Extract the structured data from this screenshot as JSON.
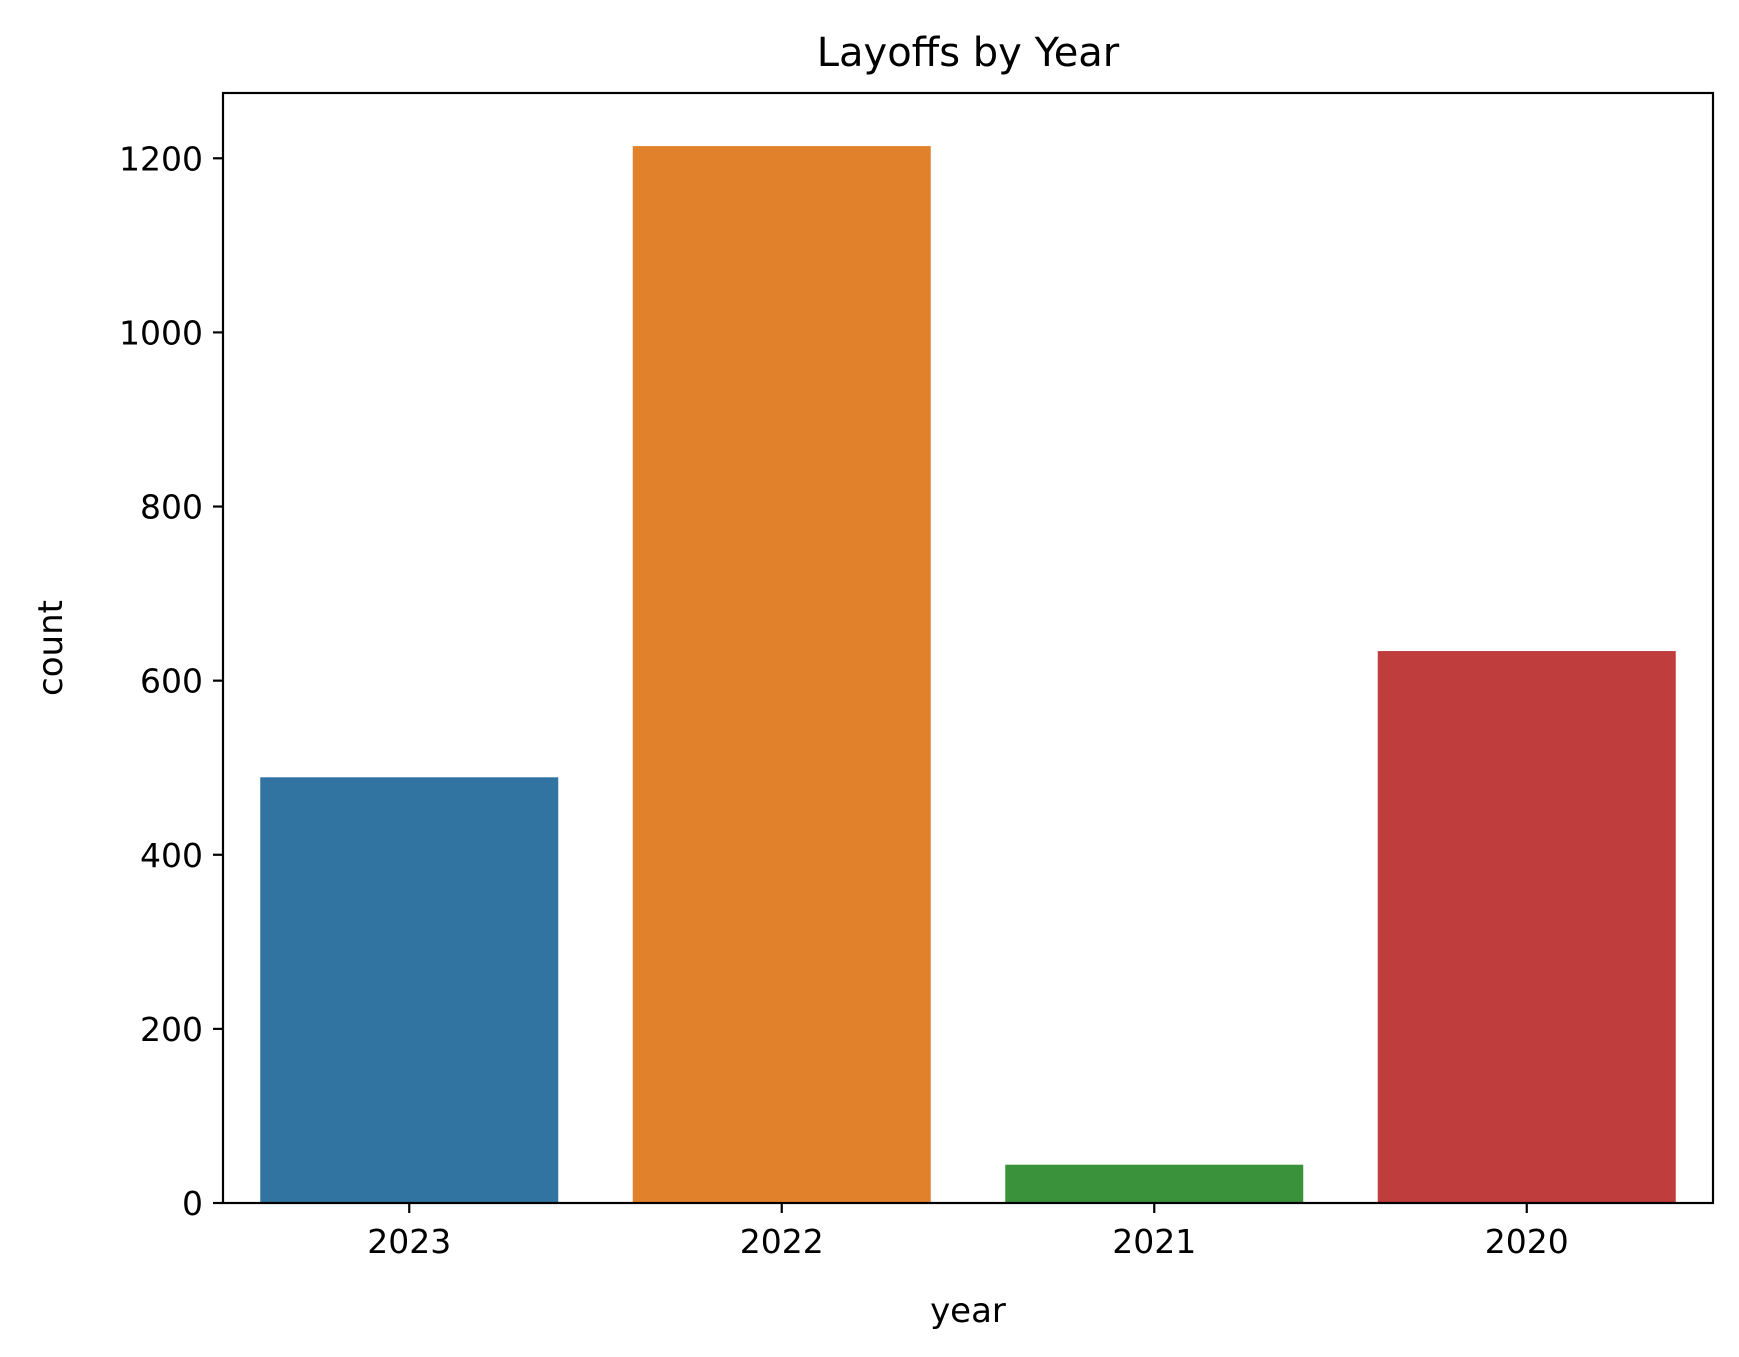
{
  "chart_data": {
    "type": "bar",
    "title": "Layoffs by Year",
    "xlabel": "year",
    "ylabel": "count",
    "categories": [
      "2023",
      "2022",
      "2021",
      "2020"
    ],
    "values": [
      489,
      1214,
      44,
      634
    ],
    "colors": [
      "#3274a1",
      "#e1812c",
      "#3a923a",
      "#c03d3e"
    ],
    "ylim": [
      0,
      1275
    ],
    "yticks": [
      0,
      200,
      400,
      600,
      800,
      1000,
      1200
    ],
    "grid": false,
    "legend": "none"
  }
}
